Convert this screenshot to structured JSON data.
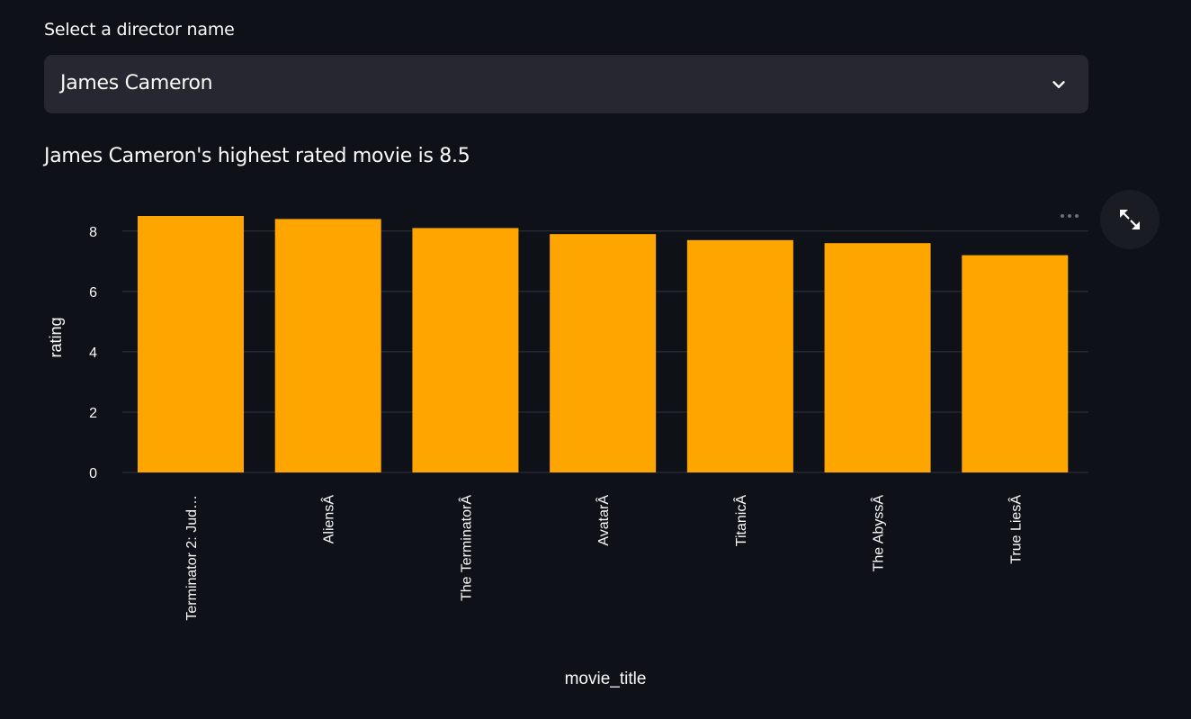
{
  "selector": {
    "label": "Select a director name",
    "value": "James Cameron"
  },
  "result_text": "James Cameron's highest rated movie is 8.5",
  "icons": {
    "dropdown": "chevron-down-icon",
    "more": "more-horizontal-icon",
    "fullscreen": "expand-icon"
  },
  "colors": {
    "background": "#0e1117",
    "bar": "#ffa500",
    "grid": "#31333f",
    "text": "#fafafa"
  },
  "chart_data": {
    "type": "bar",
    "categories": [
      "Terminator 2: Jud…",
      "AliensÂ",
      "The TerminatorÂ",
      "AvatarÂ",
      "TitanicÂ",
      "The AbyssÂ",
      "True LiesÂ"
    ],
    "values": [
      8.5,
      8.4,
      8.1,
      7.9,
      7.7,
      7.6,
      7.2
    ],
    "xlabel": "movie_title",
    "ylabel": "rating",
    "ylim": [
      0,
      8.5
    ],
    "yticks": [
      0,
      2,
      4,
      6,
      8
    ],
    "grid": true,
    "color": "#ffa500"
  }
}
